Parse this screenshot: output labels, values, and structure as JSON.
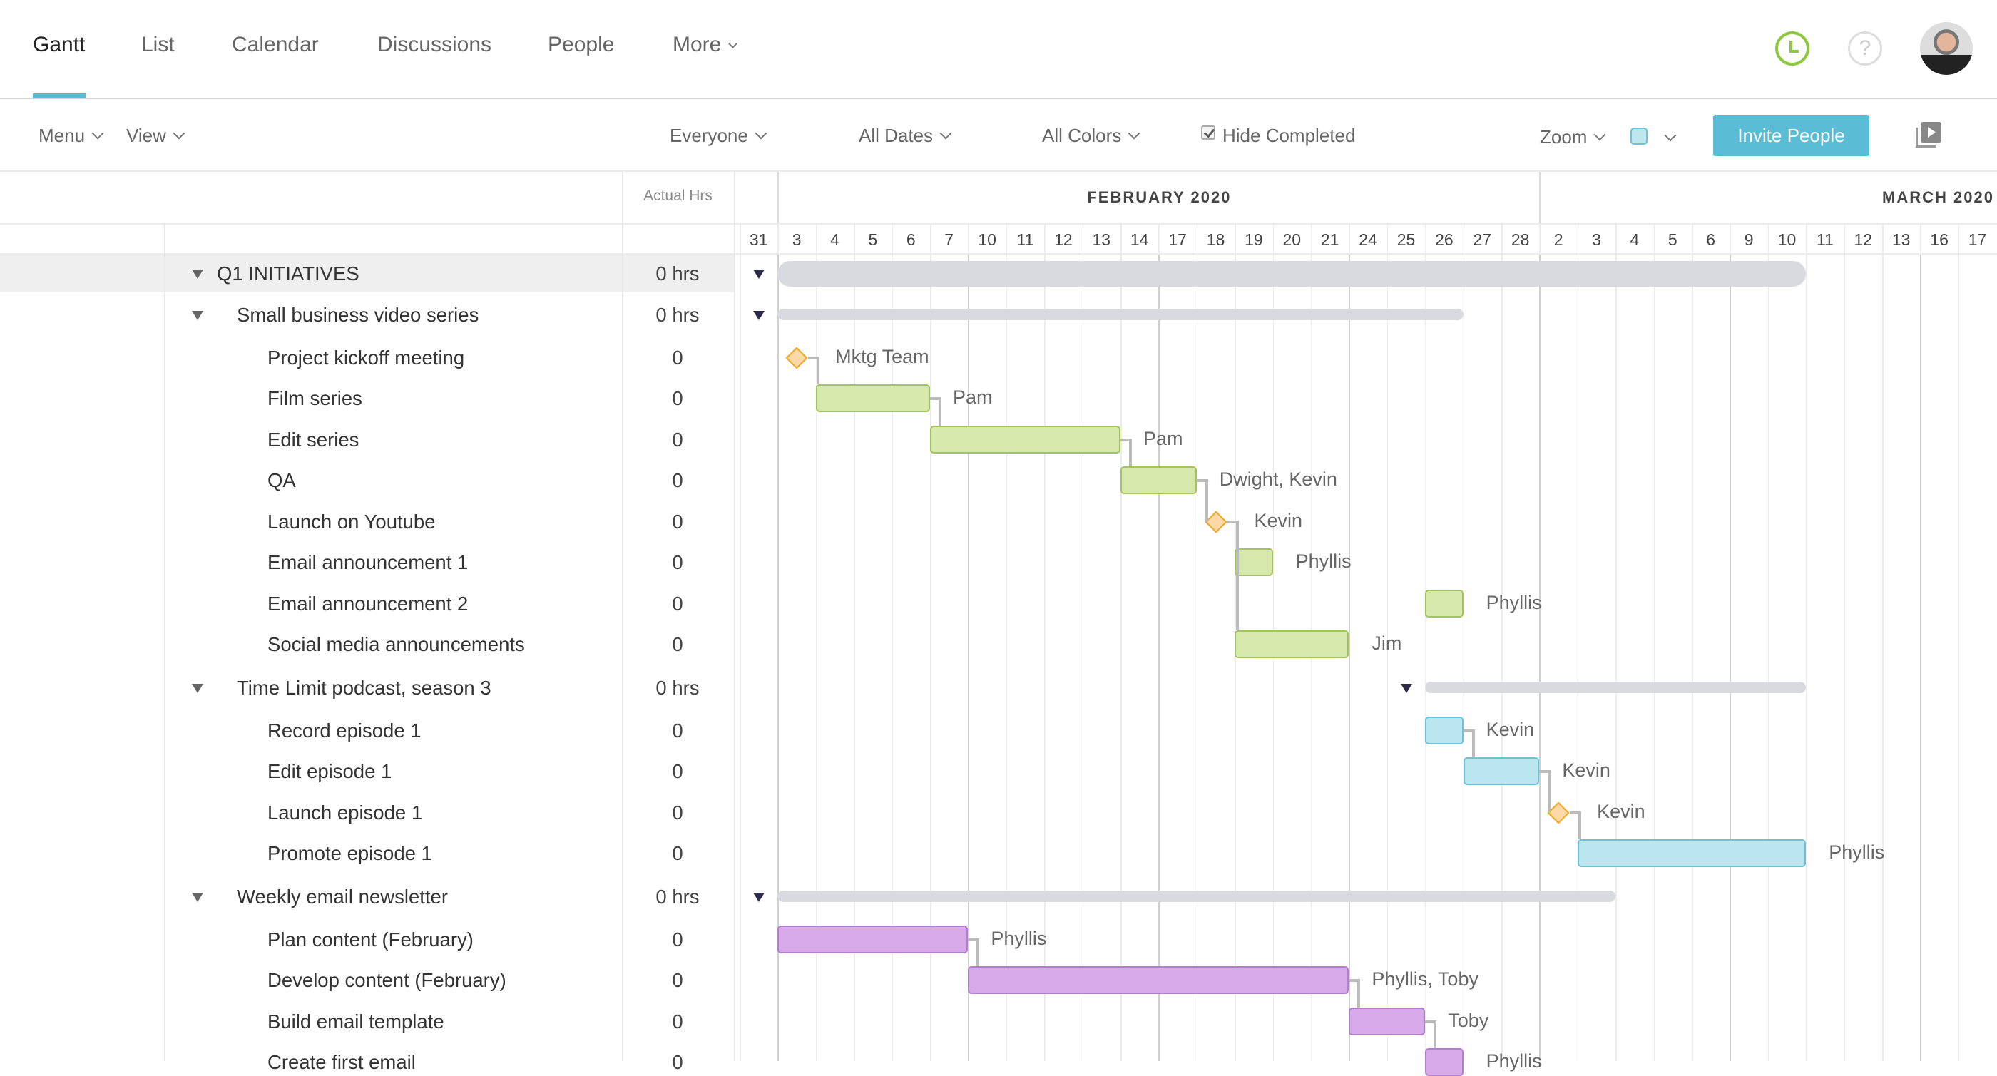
{
  "nav": {
    "tabs": [
      {
        "label": "Gantt",
        "active": true
      },
      {
        "label": "List"
      },
      {
        "label": "Calendar"
      },
      {
        "label": "Discussions"
      },
      {
        "label": "People"
      },
      {
        "label": "More"
      }
    ],
    "icons": [
      "clock-icon",
      "help-icon",
      "avatar"
    ],
    "help_glyph": "?"
  },
  "toolbar": {
    "menu": "Menu",
    "view": "View",
    "everyone": "Everyone",
    "all_dates": "All Dates",
    "all_colors": "All Colors",
    "hide_completed": "Hide Completed",
    "hide_completed_checked": true,
    "zoom": "Zoom",
    "invite": "Invite People",
    "accent": "#5bbcd6"
  },
  "grid": {
    "actual_hrs_header": "Actual Hrs",
    "months": [
      "FEBRUARY 2020",
      "MARCH 2020"
    ],
    "days": [
      {
        "label": "31",
        "date": "2020-01-31"
      },
      {
        "label": "3",
        "date": "2020-02-03"
      },
      {
        "label": "4",
        "date": "2020-02-04"
      },
      {
        "label": "5",
        "date": "2020-02-05"
      },
      {
        "label": "6",
        "date": "2020-02-06"
      },
      {
        "label": "7",
        "date": "2020-02-07"
      },
      {
        "label": "10",
        "date": "2020-02-10"
      },
      {
        "label": "11",
        "date": "2020-02-11"
      },
      {
        "label": "12",
        "date": "2020-02-12"
      },
      {
        "label": "13",
        "date": "2020-02-13"
      },
      {
        "label": "14",
        "date": "2020-02-14"
      },
      {
        "label": "17",
        "date": "2020-02-17"
      },
      {
        "label": "18",
        "date": "2020-02-18"
      },
      {
        "label": "19",
        "date": "2020-02-19"
      },
      {
        "label": "20",
        "date": "2020-02-20"
      },
      {
        "label": "21",
        "date": "2020-02-21"
      },
      {
        "label": "24",
        "date": "2020-02-24"
      },
      {
        "label": "25",
        "date": "2020-02-25"
      },
      {
        "label": "26",
        "date": "2020-02-26"
      },
      {
        "label": "27",
        "date": "2020-02-27"
      },
      {
        "label": "28",
        "date": "2020-02-28"
      },
      {
        "label": "2",
        "date": "2020-03-02"
      },
      {
        "label": "3",
        "date": "2020-03-03"
      },
      {
        "label": "4",
        "date": "2020-03-04"
      },
      {
        "label": "5",
        "date": "2020-03-05"
      },
      {
        "label": "6",
        "date": "2020-03-06"
      },
      {
        "label": "9",
        "date": "2020-03-09"
      },
      {
        "label": "10",
        "date": "2020-03-10"
      },
      {
        "label": "11",
        "date": "2020-03-11"
      },
      {
        "label": "12",
        "date": "2020-03-12"
      },
      {
        "label": "13",
        "date": "2020-03-13"
      },
      {
        "label": "16",
        "date": "2020-03-16"
      },
      {
        "label": "17",
        "date": "2020-03-17"
      }
    ]
  },
  "colors": {
    "green_fill": "#d7e8ad",
    "green_border": "#a3c45a",
    "blue_fill": "#bce6ef",
    "blue_border": "#6cc3d8",
    "purple_fill": "#d6a9e8",
    "purple_border": "#b27fcf",
    "summary": "#d9d9e0",
    "milestone_fill": "#fdd9a8",
    "milestone_border": "#f5a623"
  },
  "rows": [
    {
      "type": "root",
      "name": "Q1 INITIATIVES",
      "hrs": "0 hrs",
      "start": "2020-02-03",
      "end": "2020-03-10"
    },
    {
      "type": "group",
      "name": "Small business video series",
      "hrs": "0 hrs",
      "start": "2020-02-03",
      "end": "2020-02-26"
    },
    {
      "type": "task",
      "name": "Project kickoff meeting",
      "hrs": "0",
      "milestone": true,
      "start": "2020-02-03",
      "end": "2020-02-03",
      "assignee": "Mktg Team"
    },
    {
      "type": "task",
      "name": "Film series",
      "hrs": "0",
      "color": "green",
      "start": "2020-02-04",
      "end": "2020-02-06",
      "assignee": "Pam",
      "after": "Project kickoff meeting"
    },
    {
      "type": "task",
      "name": "Edit series",
      "hrs": "0",
      "color": "green",
      "start": "2020-02-07",
      "end": "2020-02-13",
      "assignee": "Pam",
      "after": "Film series"
    },
    {
      "type": "task",
      "name": "QA",
      "hrs": "0",
      "color": "green",
      "start": "2020-02-14",
      "end": "2020-02-17",
      "assignee": "Dwight, Kevin",
      "after": "Edit series"
    },
    {
      "type": "task",
      "name": "Launch on Youtube",
      "hrs": "0",
      "milestone": true,
      "start": "2020-02-18",
      "end": "2020-02-18",
      "assignee": "Kevin",
      "after": "QA"
    },
    {
      "type": "task",
      "name": "Email announcement 1",
      "hrs": "0",
      "color": "green",
      "start": "2020-02-19",
      "end": "2020-02-19",
      "assignee": "Phyllis",
      "after": "Launch on Youtube"
    },
    {
      "type": "task",
      "name": "Email announcement 2",
      "hrs": "0",
      "color": "green",
      "start": "2020-02-26",
      "end": "2020-02-26",
      "assignee": "Phyllis"
    },
    {
      "type": "task",
      "name": "Social media announcements",
      "hrs": "0",
      "color": "green",
      "start": "2020-02-19",
      "end": "2020-02-21",
      "assignee": "Jim",
      "after": "Launch on Youtube"
    },
    {
      "type": "group",
      "name": "Time Limit podcast, season 3",
      "hrs": "0 hrs",
      "start": "2020-02-26",
      "end": "2020-03-10"
    },
    {
      "type": "task",
      "name": "Record episode 1",
      "hrs": "0",
      "color": "blue",
      "start": "2020-02-26",
      "end": "2020-02-26",
      "assignee": "Kevin"
    },
    {
      "type": "task",
      "name": "Edit episode 1",
      "hrs": "0",
      "color": "blue",
      "start": "2020-02-27",
      "end": "2020-02-28",
      "assignee": "Kevin",
      "after": "Record episode 1"
    },
    {
      "type": "task",
      "name": "Launch episode 1",
      "hrs": "0",
      "milestone": true,
      "start": "2020-03-02",
      "end": "2020-03-02",
      "assignee": "Kevin",
      "after": "Edit episode 1"
    },
    {
      "type": "task",
      "name": "Promote episode 1",
      "hrs": "0",
      "color": "blue",
      "start": "2020-03-03",
      "end": "2020-03-10",
      "assignee": "Phyllis",
      "after": "Launch episode 1"
    },
    {
      "type": "group",
      "name": "Weekly email newsletter",
      "hrs": "0 hrs",
      "start": "2020-02-03",
      "end": "2020-03-03"
    },
    {
      "type": "task",
      "name": "Plan content (February)",
      "hrs": "0",
      "color": "purple",
      "start": "2020-02-03",
      "end": "2020-02-07",
      "assignee": "Phyllis"
    },
    {
      "type": "task",
      "name": "Develop content (February)",
      "hrs": "0",
      "color": "purple",
      "start": "2020-02-10",
      "end": "2020-02-21",
      "assignee": "Phyllis, Toby",
      "after": "Plan content (February)"
    },
    {
      "type": "task",
      "name": "Build email template",
      "hrs": "0",
      "color": "purple",
      "start": "2020-02-24",
      "end": "2020-02-25",
      "assignee": "Toby",
      "after": "Develop content (February)"
    },
    {
      "type": "task",
      "name": "Create first email",
      "hrs": "0",
      "color": "purple",
      "start": "2020-02-26",
      "end": "2020-02-26",
      "assignee": "Phyllis",
      "after": "Build email template"
    }
  ]
}
